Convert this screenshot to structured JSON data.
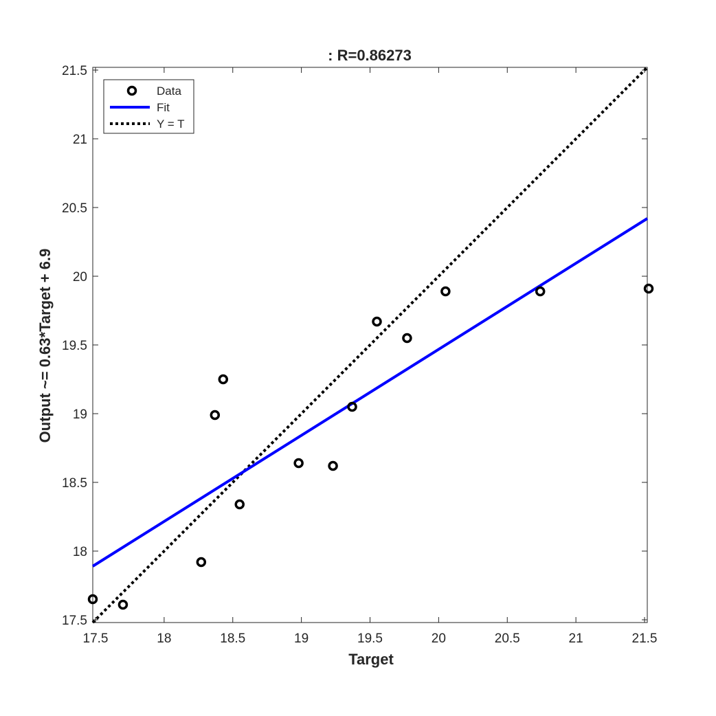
{
  "chart_data": {
    "type": "scatter",
    "title": ": R=0.86273",
    "xlabel": "Target",
    "ylabel": "Output ~= 0.63*Target + 6.9",
    "xlim": [
      17.48,
      21.52
    ],
    "ylim": [
      17.48,
      21.52
    ],
    "xticks": [
      17.5,
      18,
      18.5,
      19,
      19.5,
      20,
      20.5,
      21,
      21.5
    ],
    "yticks": [
      17.5,
      18,
      18.5,
      19,
      19.5,
      20,
      20.5,
      21,
      21.5
    ],
    "xtick_labels": [
      "17.5",
      "18",
      "18.5",
      "19",
      "19.5",
      "20",
      "20.5",
      "21",
      "21.5"
    ],
    "ytick_labels": [
      "17.5",
      "18",
      "18.5",
      "19",
      "19.5",
      "20",
      "20.5",
      "21",
      "21.5"
    ],
    "grid": false,
    "legend_position": "top-left",
    "series": [
      {
        "name": "Data",
        "kind": "markers",
        "color": "#000000",
        "x": [
          17.48,
          17.7,
          18.27,
          18.37,
          18.43,
          18.55,
          18.98,
          19.23,
          19.37,
          19.55,
          19.77,
          20.05,
          20.74,
          21.53
        ],
        "y": [
          17.65,
          17.61,
          17.92,
          18.99,
          19.25,
          18.34,
          18.64,
          18.62,
          19.05,
          19.67,
          19.55,
          19.89,
          19.89,
          19.91
        ]
      },
      {
        "name": "Fit",
        "kind": "line",
        "color": "#0000ff",
        "x": [
          17.48,
          21.52
        ],
        "y": [
          17.89,
          20.42
        ]
      },
      {
        "name": "Y = T",
        "kind": "dotted-line",
        "color": "#000000",
        "x": [
          17.48,
          21.52
        ],
        "y": [
          17.48,
          21.52
        ]
      }
    ]
  }
}
